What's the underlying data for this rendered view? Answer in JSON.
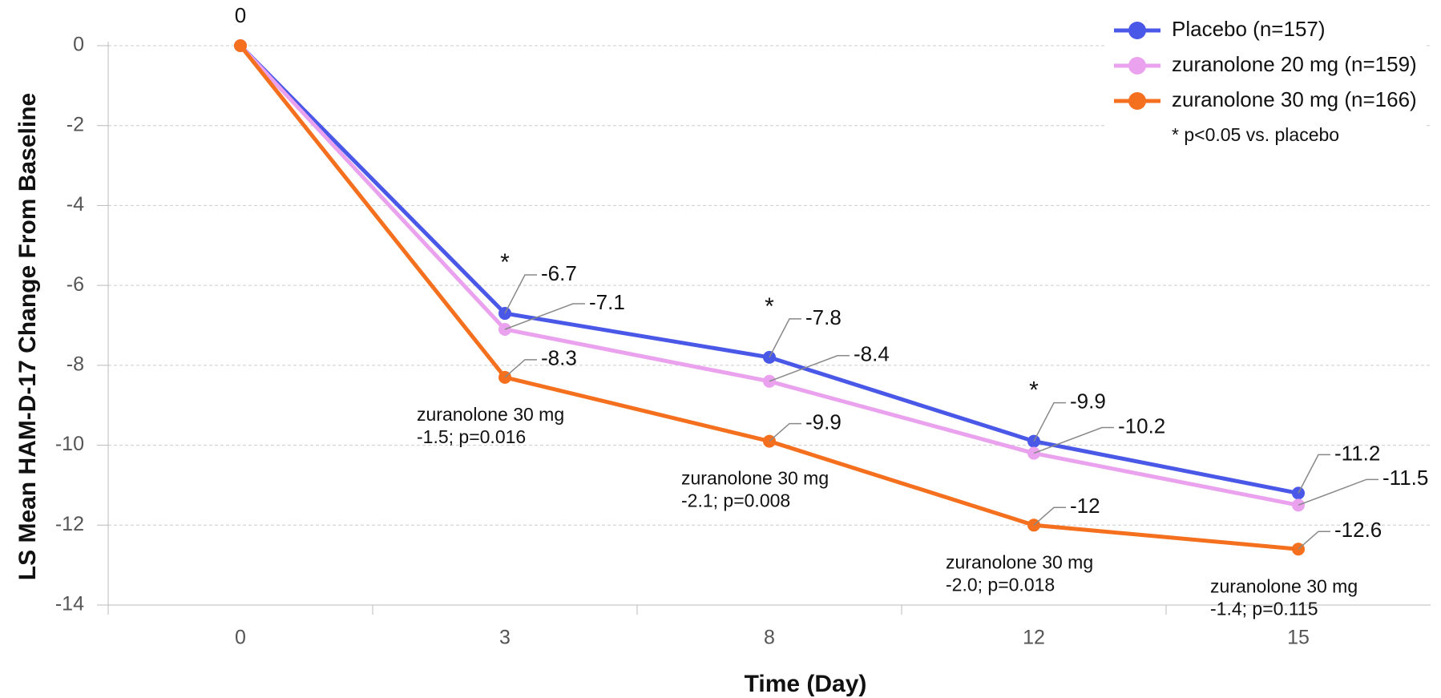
{
  "chart_data": {
    "type": "line",
    "y_label": "LS Mean HAM-D-17 Change From Baseline",
    "x_label": "Time (Day)",
    "categories": [
      "0",
      "3",
      "8",
      "12",
      "15"
    ],
    "series": [
      {
        "name": "Placebo (n=157)",
        "color": "#4a58e8",
        "values": [
          0,
          -6.7,
          -7.8,
          -9.9,
          -11.2
        ]
      },
      {
        "name": "zuranolone 20 mg (n=159)",
        "color": "#eaa2ee",
        "values": [
          0,
          -7.1,
          -8.4,
          -10.2,
          -11.5
        ]
      },
      {
        "name": "zuranolone 30 mg (n=166)",
        "color": "#f5701e",
        "values": [
          0,
          -8.3,
          -9.9,
          -12,
          -12.6
        ]
      }
    ],
    "significance_markers": [
      null,
      "*",
      "*",
      "*",
      null
    ],
    "legend_note": "* p<0.05 vs. placebo",
    "comparisons": [
      null,
      [
        "zuranolone 30 mg",
        "-1.5; p=0.016"
      ],
      [
        "zuranolone 30 mg",
        "-2.1; p=0.008"
      ],
      [
        "zuranolone 30 mg",
        "-2.0; p=0.018"
      ],
      [
        "zuranolone 30 mg",
        "-1.4; p=0.115"
      ]
    ],
    "ylim": [
      -14,
      0
    ],
    "yticks": [
      0,
      -2,
      -4,
      -6,
      -8,
      -10,
      -12,
      -14
    ],
    "grid": true,
    "legend": "top-right"
  }
}
